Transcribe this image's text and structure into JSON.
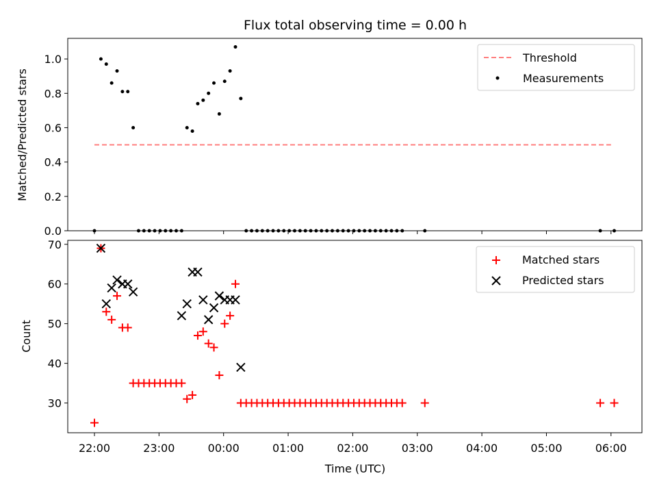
{
  "chart_data": [
    {
      "type": "scatter",
      "title": "Flux total observing time = 0.00 h",
      "xlabel": "",
      "ylabel": "Matched/Predicted stars",
      "ylim": [
        0,
        1.12
      ],
      "yticks": [
        "0.0",
        "0.2",
        "0.4",
        "0.6",
        "0.8",
        "1.0"
      ],
      "legend_position": "top-right",
      "threshold": {
        "name": "Threshold",
        "value": 0.5,
        "x_start": "22:00",
        "x_end": "06:00",
        "color": "#ff7f7f"
      },
      "series": [
        {
          "name": "Measurements",
          "color": "#000000",
          "x": [
            "22:00",
            "22:06",
            "22:11",
            "22:16",
            "22:21",
            "22:26",
            "22:31",
            "22:36",
            "22:41",
            "22:46",
            "22:51",
            "22:56",
            "23:01",
            "23:06",
            "23:11",
            "23:16",
            "23:21",
            "23:26",
            "23:31",
            "23:36",
            "23:41",
            "23:46",
            "23:51",
            "23:56",
            "00:01",
            "00:06",
            "00:11",
            "00:16",
            "00:21",
            "00:26",
            "00:31",
            "00:36",
            "00:41",
            "00:46",
            "00:51",
            "00:56",
            "01:01",
            "01:06",
            "01:11",
            "01:16",
            "01:21",
            "01:26",
            "01:31",
            "01:36",
            "01:41",
            "01:46",
            "01:51",
            "01:56",
            "02:01",
            "02:06",
            "02:11",
            "02:16",
            "02:21",
            "02:26",
            "02:31",
            "02:36",
            "02:41",
            "02:46",
            "03:07",
            "05:50",
            "06:03"
          ],
          "y": [
            0,
            1.0,
            0.97,
            0.86,
            0.93,
            0.81,
            0.81,
            0.6,
            0,
            0,
            0,
            0,
            0,
            0,
            0,
            0,
            0,
            0.6,
            0.58,
            0.74,
            0.76,
            0.8,
            0.86,
            0.68,
            0.87,
            0.93,
            1.07,
            0.77,
            0,
            0,
            0,
            0,
            0,
            0,
            0,
            0,
            0,
            0,
            0,
            0,
            0,
            0,
            0,
            0,
            0,
            0,
            0,
            0,
            0,
            0,
            0,
            0,
            0,
            0,
            0,
            0,
            0,
            0,
            0,
            0,
            0
          ]
        }
      ]
    },
    {
      "type": "scatter",
      "title": "",
      "xlabel": "Time (UTC)",
      "ylabel": "Count",
      "ylim": [
        22.5,
        71
      ],
      "yticks": [
        "30",
        "40",
        "50",
        "60",
        "70"
      ],
      "xticks": [
        "22:00",
        "23:00",
        "00:00",
        "01:00",
        "02:00",
        "03:00",
        "04:00",
        "05:00",
        "06:00"
      ],
      "legend_position": "top-right",
      "series": [
        {
          "name": "Matched stars",
          "marker": "+",
          "color": "#ff0000",
          "x": [
            "22:00",
            "22:06",
            "22:11",
            "22:16",
            "22:21",
            "22:26",
            "22:31",
            "22:36",
            "22:41",
            "22:46",
            "22:51",
            "22:56",
            "23:01",
            "23:06",
            "23:11",
            "23:16",
            "23:21",
            "23:26",
            "23:31",
            "23:36",
            "23:41",
            "23:46",
            "23:51",
            "23:56",
            "00:01",
            "00:06",
            "00:11",
            "00:16",
            "00:21",
            "00:26",
            "00:31",
            "00:36",
            "00:41",
            "00:46",
            "00:51",
            "00:56",
            "01:01",
            "01:06",
            "01:11",
            "01:16",
            "01:21",
            "01:26",
            "01:31",
            "01:36",
            "01:41",
            "01:46",
            "01:51",
            "01:56",
            "02:01",
            "02:06",
            "02:11",
            "02:16",
            "02:21",
            "02:26",
            "02:31",
            "02:36",
            "02:41",
            "02:46",
            "03:07",
            "05:50",
            "06:03"
          ],
          "y": [
            25,
            69,
            53,
            51,
            57,
            49,
            49,
            35,
            35,
            35,
            35,
            35,
            35,
            35,
            35,
            35,
            35,
            31,
            32,
            47,
            48,
            45,
            44,
            37,
            50,
            52,
            60,
            30,
            30,
            30,
            30,
            30,
            30,
            30,
            30,
            30,
            30,
            30,
            30,
            30,
            30,
            30,
            30,
            30,
            30,
            30,
            30,
            30,
            30,
            30,
            30,
            30,
            30,
            30,
            30,
            30,
            30,
            30,
            30,
            30,
            30
          ]
        },
        {
          "name": "Predicted stars",
          "marker": "x",
          "color": "#000000",
          "x": [
            "22:06",
            "22:11",
            "22:16",
            "22:21",
            "22:26",
            "22:31",
            "22:36",
            "23:21",
            "23:26",
            "23:31",
            "23:36",
            "23:41",
            "23:46",
            "23:51",
            "23:56",
            "00:01",
            "00:06",
            "00:11",
            "00:16"
          ],
          "y": [
            69,
            55,
            59,
            61,
            60,
            60,
            58,
            52,
            55,
            63,
            63,
            56,
            51,
            54,
            57,
            56,
            56,
            56,
            39
          ]
        }
      ]
    }
  ]
}
